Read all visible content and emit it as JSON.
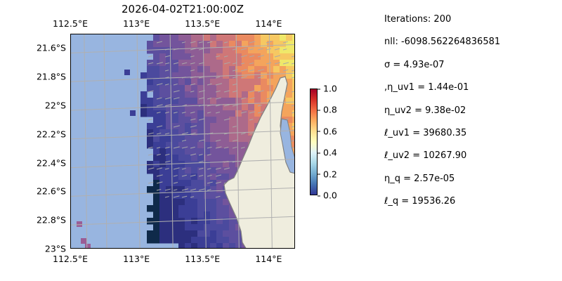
{
  "map": {
    "title": "2026-04-02T21:00:00Z",
    "lon_ticks": [
      "112.5°E",
      "113°E",
      "113.5°E",
      "114°E"
    ],
    "lat_ticks": [
      "21.6°S",
      "21.8°S",
      "22°S",
      "22.2°S",
      "22.4°S",
      "22.6°S",
      "22.8°S",
      "23°S"
    ],
    "lon_values": [
      112.5,
      113.0,
      113.5,
      114.0
    ],
    "lat_values": [
      -21.6,
      -21.8,
      -22.0,
      -22.2,
      -22.4,
      -22.6,
      -22.8,
      -23.0
    ],
    "extent": {
      "lon_min": 112.5,
      "lon_max": 114.2,
      "lat_min": -23.0,
      "lat_max": -21.5
    },
    "colors": {
      "ocean": "#98b5e0",
      "land": "#efedde",
      "coast": "#7f7f7f",
      "grid": "#b0b0b0",
      "arrows": "#a9a9a9"
    },
    "colormap": "RdYlBu_r"
  },
  "colorbar": {
    "ticks": [
      "0.0",
      "0.2",
      "0.4",
      "0.6",
      "0.8",
      "1.0"
    ],
    "min": 0.0,
    "max": 1.0
  },
  "stats": [
    "Iterations: 200",
    "nll: -6098.562264836581",
    "σ = 4.93e-07",
    ",η_uv1 = 1.44e-01",
    "η_uv2 = 9.38e-02",
    "ℓ_uv1 = 39680.35",
    "ℓ_uv2 = 10267.90",
    "η_q = 2.57e-05",
    "ℓ_q = 19536.26"
  ]
}
